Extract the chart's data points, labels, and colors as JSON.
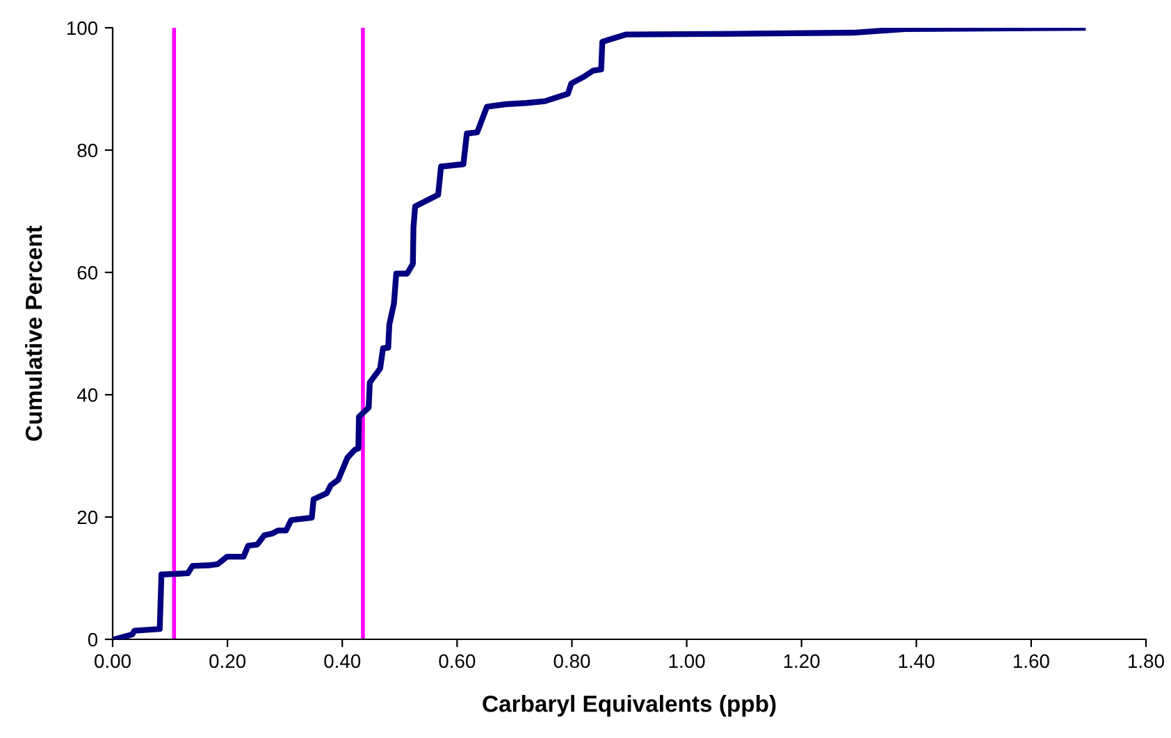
{
  "chart_data": {
    "type": "line",
    "xlabel": "Carbaryl Equivalents (ppb)",
    "ylabel": "Cumulative Percent",
    "xlim": [
      0,
      1.8
    ],
    "ylim": [
      0,
      100
    ],
    "xticks": [
      {
        "value": 0,
        "label": "0.00"
      },
      {
        "value": 0.2,
        "label": "0.20"
      },
      {
        "value": 0.4,
        "label": "0.40"
      },
      {
        "value": 0.6,
        "label": "0.60"
      },
      {
        "value": 0.8,
        "label": "0.80"
      },
      {
        "value": 1.0,
        "label": "1.00"
      },
      {
        "value": 1.2,
        "label": "1.20"
      },
      {
        "value": 1.4,
        "label": "1.40"
      },
      {
        "value": 1.6,
        "label": "1.60"
      },
      {
        "value": 1.8,
        "label": "1.80"
      }
    ],
    "yticks": [
      0,
      20,
      40,
      60,
      80,
      100
    ],
    "grid": false,
    "legend": false,
    "marker": "none",
    "line_style": "solid",
    "series": [
      {
        "color": "#000080",
        "x": [
          0.003,
          0.034,
          0.038,
          0.082,
          0.085,
          0.131,
          0.139,
          0.167,
          0.183,
          0.199,
          0.228,
          0.236,
          0.252,
          0.264,
          0.278,
          0.288,
          0.302,
          0.311,
          0.347,
          0.35,
          0.373,
          0.38,
          0.393,
          0.409,
          0.422,
          0.428,
          0.429,
          0.446,
          0.448,
          0.466,
          0.471,
          0.48,
          0.482,
          0.49,
          0.494,
          0.513,
          0.523,
          0.524,
          0.527,
          0.567,
          0.572,
          0.611,
          0.617,
          0.635,
          0.652,
          0.684,
          0.72,
          0.753,
          0.773,
          0.793,
          0.799,
          0.821,
          0.837,
          0.851,
          0.853,
          0.866,
          0.894,
          1.05,
          1.29,
          1.38,
          1.69
        ],
        "values": [
          0,
          0.8,
          1.4,
          1.7,
          10.6,
          10.8,
          12,
          12.1,
          12.3,
          13.5,
          13.5,
          15.3,
          15.5,
          17,
          17.3,
          17.8,
          17.8,
          19.5,
          19.9,
          22.9,
          23.9,
          25.2,
          26.1,
          29.7,
          31,
          31.2,
          36.4,
          37.9,
          42,
          44.3,
          47.6,
          47.7,
          51.5,
          54.9,
          59.8,
          59.8,
          61.4,
          67.4,
          70.8,
          72.7,
          77.3,
          77.7,
          82.7,
          82.9,
          87.1,
          87.5,
          87.7,
          88,
          88.6,
          89.2,
          90.9,
          92,
          93,
          93.2,
          97.7,
          98.1,
          98.9,
          99,
          99.2,
          99.8,
          100
        ]
      }
    ],
    "ref_lines": [
      {
        "axis": "x",
        "value": 0.107,
        "color": "#ff00ff"
      },
      {
        "axis": "x",
        "value": 0.436,
        "color": "#ff00ff"
      }
    ]
  }
}
